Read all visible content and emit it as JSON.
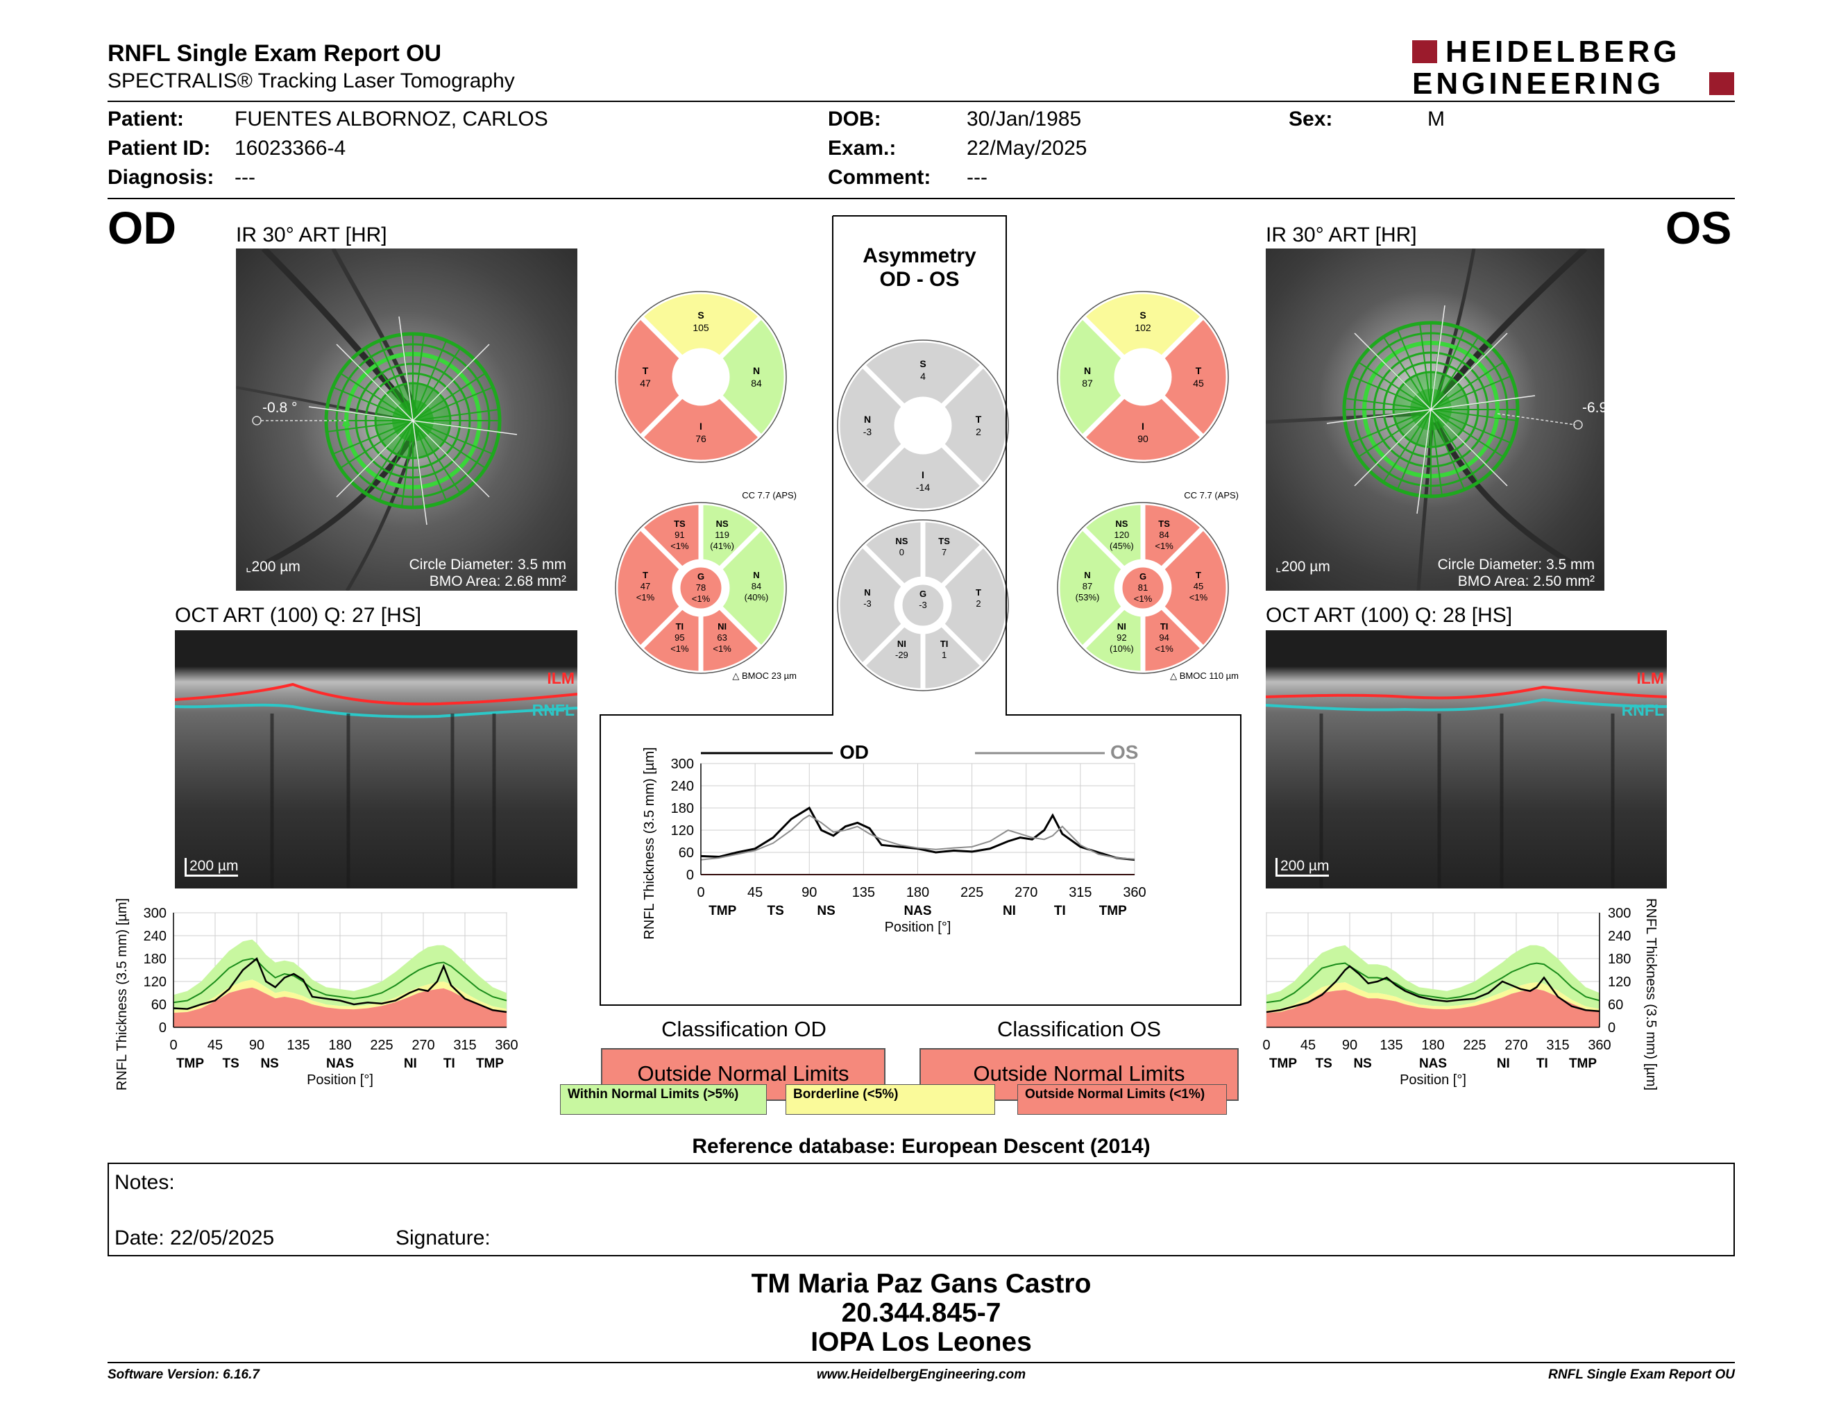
{
  "header": {
    "title": "RNFL Single Exam Report OU",
    "subtitle": "SPECTRALIS® Tracking Laser Tomography",
    "logo_line1": "HEIDELBERG",
    "logo_line2": "ENGINEERING",
    "logo_color": "#9b1b2c"
  },
  "patient": {
    "patient_label": "Patient:",
    "patient_value": "FUENTES ALBORNOZ, CARLOS",
    "id_label": "Patient ID:",
    "id_value": "16023366-4",
    "diagnosis_label": "Diagnosis:",
    "diagnosis_value": "---",
    "dob_label": "DOB:",
    "dob_value": "30/Jan/1985",
    "exam_label": "Exam.:",
    "exam_value": "22/May/2025",
    "comment_label": "Comment:",
    "comment_value": "---",
    "sex_label": "Sex:",
    "sex_value": "M"
  },
  "od": {
    "eye": "OD",
    "ir_title": "IR 30° ART [HR]",
    "angle": "-0.8 °",
    "scale": "200 µm",
    "circle_diameter": "Circle Diameter: 3.5 mm",
    "bmo_area": "BMO Area: 2.68 mm²",
    "oct_title": "OCT ART (100) Q: 27 [HS]",
    "ilm": "ILM",
    "rnfl": "RNFL",
    "oct_scale": "200 µm",
    "sector4": {
      "S": "105",
      "N": "84",
      "I": "76",
      "T": "47"
    },
    "sector6": {
      "cc": "CC 7.7 (APS)",
      "TS": [
        "TS",
        "91",
        "<1%"
      ],
      "NS": [
        "NS",
        "119",
        "(41%)"
      ],
      "T": [
        "T",
        "47",
        "<1%"
      ],
      "G": [
        "G",
        "78",
        "<1%"
      ],
      "N": [
        "N",
        "84",
        "(40%)"
      ],
      "TI": [
        "TI",
        "95",
        "<1%"
      ],
      "NI": [
        "NI",
        "63",
        "<1%"
      ],
      "bmoc": "BMOC 23 µm"
    }
  },
  "os": {
    "eye": "OS",
    "ir_title": "IR 30° ART [HR]",
    "angle": "-6.9",
    "scale": "200 µm",
    "circle_diameter": "Circle Diameter: 3.5 mm",
    "bmo_area": "BMO Area: 2.50 mm²",
    "oct_title": "OCT ART (100) Q: 28 [HS]",
    "ilm": "ILM",
    "rnfl": "RNFL",
    "oct_scale": "200 µm",
    "sector4": {
      "S": "102",
      "N": "87",
      "I": "90",
      "T": "45"
    },
    "sector6": {
      "cc": "CC 7.7 (APS)",
      "NS": [
        "NS",
        "120",
        "(45%)"
      ],
      "TS": [
        "TS",
        "84",
        "<1%"
      ],
      "N": [
        "N",
        "87",
        "(53%)"
      ],
      "G": [
        "G",
        "81",
        "<1%"
      ],
      "T": [
        "T",
        "45",
        "<1%"
      ],
      "NI": [
        "NI",
        "92",
        "(10%)"
      ],
      "TI": [
        "TI",
        "94",
        "<1%"
      ],
      "bmoc": "BMOC 110 µm"
    }
  },
  "asymmetry": {
    "title1": "Asymmetry",
    "title2": "OD - OS",
    "sector4": {
      "S": "4",
      "N": "-3",
      "T": "2",
      "I": "-14"
    },
    "sector6": {
      "NS": "0",
      "TS": "7",
      "N": "-3",
      "G": "-3",
      "T": "2",
      "NI": "-29",
      "TI": "1"
    }
  },
  "colors": {
    "green": "#c8f7a0",
    "yellow": "#fafa9a",
    "red": "#f5897c",
    "gray": "#d3d3d3",
    "od_line": "#000000",
    "os_line": "#8c8c8c"
  },
  "chart_data": [
    {
      "id": "od-profile",
      "type": "line",
      "ylabel": "RNFL Thickness (3.5 mm) [µm]",
      "xlabel": "Position [°]",
      "ylim": [
        0,
        300
      ],
      "xlim": [
        0,
        360
      ],
      "yticks": [
        0,
        60,
        120,
        180,
        240,
        300
      ],
      "xticks": [
        0,
        45,
        90,
        135,
        180,
        225,
        270,
        315,
        360
      ],
      "sector_labels": [
        "TMP",
        "TS",
        "NS",
        "NAS",
        "NI",
        "TI",
        "TMP"
      ],
      "sector_positions": [
        18,
        62,
        104,
        180,
        256,
        298,
        342
      ],
      "x": [
        0,
        15,
        30,
        45,
        60,
        75,
        85,
        90,
        100,
        110,
        120,
        130,
        140,
        150,
        165,
        180,
        195,
        210,
        225,
        240,
        255,
        265,
        275,
        285,
        292,
        300,
        315,
        330,
        345,
        360
      ],
      "series": [
        {
          "name": "",
          "role": "measured",
          "values": [
            50,
            48,
            60,
            70,
            100,
            150,
            170,
            180,
            120,
            105,
            130,
            140,
            125,
            80,
            75,
            70,
            60,
            65,
            62,
            70,
            90,
            100,
            95,
            120,
            160,
            110,
            75,
            60,
            45,
            40
          ]
        },
        {
          "name": "",
          "role": "normal_mean",
          "values": [
            65,
            70,
            90,
            120,
            155,
            175,
            180,
            175,
            150,
            130,
            140,
            135,
            120,
            100,
            85,
            80,
            75,
            80,
            90,
            110,
            135,
            150,
            160,
            168,
            170,
            160,
            130,
            100,
            80,
            70
          ]
        },
        {
          "name": "",
          "role": "p95_upper",
          "values": [
            85,
            95,
            120,
            160,
            200,
            225,
            230,
            220,
            190,
            170,
            175,
            170,
            150,
            125,
            105,
            100,
            95,
            105,
            120,
            145,
            175,
            195,
            210,
            215,
            215,
            205,
            170,
            135,
            105,
            90
          ]
        },
        {
          "name": "",
          "role": "p5_lower",
          "values": [
            45,
            48,
            60,
            80,
            105,
            120,
            125,
            120,
            105,
            90,
            95,
            90,
            82,
            70,
            60,
            56,
            55,
            58,
            65,
            78,
            95,
            105,
            112,
            118,
            120,
            112,
            90,
            70,
            55,
            48
          ]
        },
        {
          "name": "",
          "role": "p1_lower",
          "values": [
            38,
            40,
            50,
            68,
            90,
            100,
            104,
            100,
            88,
            76,
            80,
            76,
            70,
            60,
            52,
            48,
            47,
            50,
            56,
            66,
            80,
            90,
            96,
            100,
            102,
            95,
            76,
            60,
            47,
            40
          ]
        }
      ]
    },
    {
      "id": "asymmetry-profile",
      "type": "line",
      "ylabel": "RNFL Thickness (3.5 mm) [µm]",
      "xlabel": "Position [°]",
      "ylim": [
        0,
        300
      ],
      "xlim": [
        0,
        360
      ],
      "yticks": [
        0,
        60,
        120,
        180,
        240,
        300
      ],
      "xticks": [
        0,
        45,
        90,
        135,
        180,
        225,
        270,
        315,
        360
      ],
      "sector_labels": [
        "TMP",
        "TS",
        "NS",
        "NAS",
        "NI",
        "TI",
        "TMP"
      ],
      "sector_positions": [
        18,
        62,
        104,
        180,
        256,
        298,
        342
      ],
      "x": [
        0,
        15,
        30,
        45,
        60,
        75,
        85,
        90,
        100,
        110,
        120,
        130,
        140,
        150,
        165,
        180,
        195,
        210,
        225,
        240,
        255,
        265,
        275,
        285,
        292,
        300,
        315,
        330,
        345,
        360
      ],
      "series": [
        {
          "name": "OD",
          "values": [
            50,
            48,
            60,
            70,
            100,
            150,
            170,
            180,
            120,
            105,
            130,
            140,
            125,
            80,
            75,
            70,
            60,
            65,
            62,
            70,
            90,
            100,
            95,
            120,
            160,
            110,
            75,
            60,
            45,
            40
          ]
        },
        {
          "name": "OS",
          "values": [
            40,
            45,
            55,
            65,
            85,
            120,
            150,
            160,
            140,
            115,
            120,
            130,
            110,
            95,
            80,
            72,
            68,
            72,
            75,
            90,
            120,
            110,
            100,
            95,
            105,
            130,
            80,
            55,
            45,
            42
          ]
        }
      ]
    },
    {
      "id": "os-profile",
      "type": "line",
      "ylabel": "RNFL Thickness (3.5 mm) [µm]",
      "xlabel": "Position [°]",
      "ylim": [
        0,
        300
      ],
      "xlim": [
        0,
        360
      ],
      "yticks": [
        0,
        60,
        120,
        180,
        240,
        300
      ],
      "xticks": [
        0,
        45,
        90,
        135,
        180,
        225,
        270,
        315,
        360
      ],
      "sector_labels": [
        "TMP",
        "TS",
        "NS",
        "NAS",
        "NI",
        "TI",
        "TMP"
      ],
      "sector_positions": [
        18,
        62,
        104,
        180,
        256,
        298,
        342
      ],
      "x": [
        0,
        15,
        30,
        45,
        60,
        75,
        85,
        90,
        100,
        110,
        120,
        130,
        140,
        150,
        165,
        180,
        195,
        210,
        225,
        240,
        255,
        265,
        275,
        285,
        292,
        300,
        315,
        330,
        345,
        360
      ],
      "series": [
        {
          "name": "",
          "role": "measured",
          "values": [
            40,
            45,
            55,
            65,
            85,
            120,
            150,
            160,
            140,
            115,
            120,
            130,
            110,
            95,
            80,
            72,
            68,
            72,
            75,
            90,
            120,
            110,
            100,
            95,
            105,
            130,
            80,
            55,
            45,
            42
          ]
        },
        {
          "name": "",
          "role": "normal_mean",
          "values": [
            65,
            70,
            90,
            120,
            155,
            165,
            168,
            160,
            145,
            130,
            130,
            125,
            115,
            100,
            85,
            80,
            75,
            80,
            90,
            110,
            130,
            145,
            155,
            165,
            168,
            165,
            140,
            105,
            80,
            70
          ]
        },
        {
          "name": "",
          "role": "p95_upper",
          "values": [
            85,
            95,
            120,
            160,
            195,
            210,
            215,
            205,
            185,
            165,
            165,
            160,
            145,
            125,
            105,
            100,
            95,
            105,
            120,
            145,
            170,
            190,
            205,
            215,
            215,
            210,
            180,
            140,
            105,
            90
          ]
        },
        {
          "name": "",
          "role": "p5_lower",
          "values": [
            45,
            48,
            60,
            80,
            105,
            115,
            118,
            112,
            100,
            90,
            90,
            86,
            80,
            70,
            60,
            56,
            55,
            58,
            65,
            78,
            92,
            102,
            110,
            116,
            118,
            114,
            96,
            72,
            55,
            48
          ]
        },
        {
          "name": "",
          "role": "p1_lower",
          "values": [
            38,
            40,
            50,
            68,
            90,
            96,
            98,
            94,
            84,
            76,
            76,
            72,
            68,
            60,
            52,
            48,
            47,
            50,
            56,
            66,
            78,
            88,
            94,
            98,
            100,
            96,
            80,
            62,
            47,
            40
          ]
        }
      ]
    }
  ],
  "classification": {
    "od_label": "Classification OD",
    "od_value": "Outside Normal Limits",
    "os_label": "Classification OS",
    "os_value": "Outside Normal Limits"
  },
  "legend": {
    "within": "Within Normal Limits (>5%)",
    "borderline": "Borderline (<5%)",
    "outside": "Outside Normal Limits (<1%)"
  },
  "reference": "Reference database: European Descent (2014)",
  "notes": {
    "notes_label": "Notes:",
    "date_label": "Date: 22/05/2025",
    "signature_label": "Signature:"
  },
  "signature": {
    "line1": "TM Maria Paz Gans Castro",
    "line2": "20.344.845-7",
    "line3": "IOPA Los Leones"
  },
  "footer": {
    "software": "Software Version: 6.16.7",
    "website": "www.HeidelbergEngineering.com",
    "report": "RNFL Single Exam Report OU"
  }
}
